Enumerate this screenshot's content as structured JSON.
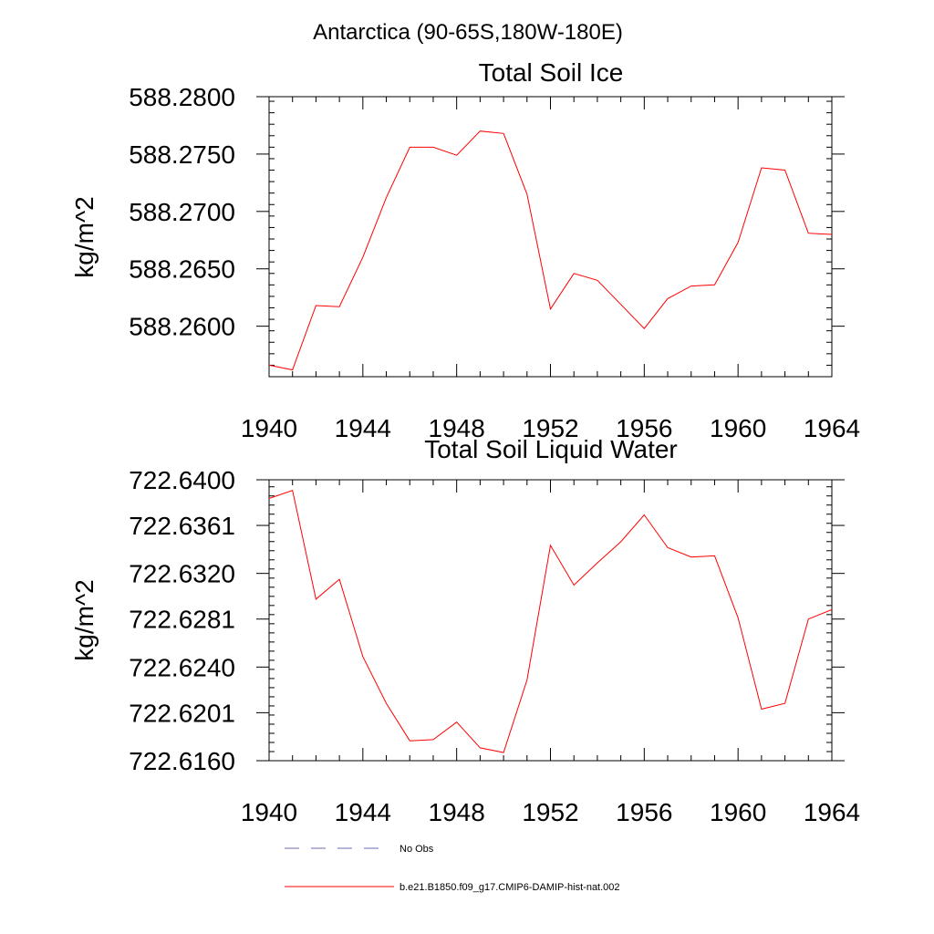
{
  "figure": {
    "suptitle": "Antarctica (90-65S,180W-180E)",
    "colors": {
      "model_line": "#ff0000",
      "obs_line": "#6b6bb5",
      "axes": "#000000"
    }
  },
  "chart_data": [
    {
      "type": "line",
      "title": "Total Soil Ice",
      "xlabel": "",
      "ylabel": "kg/m^2",
      "xlim": [
        1940,
        1964
      ],
      "ylim": [
        588.2556,
        588.28
      ],
      "xticks": [
        1940,
        1944,
        1948,
        1952,
        1956,
        1960,
        1964
      ],
      "xtick_labels": [
        "1940",
        "1944",
        "1948",
        "1952",
        "1956",
        "1960",
        "1964"
      ],
      "yticks": [
        588.28,
        588.275,
        588.27,
        588.265,
        588.26
      ],
      "ytick_labels": [
        "588.2800",
        "588.2750",
        "588.2700",
        "588.2650",
        "588.2600"
      ],
      "grid": false,
      "series": [
        {
          "name": "b.e21.B1850.f09_g17.CMIP6-DAMIP-hist-nat.002",
          "color": "#ff0000",
          "x": [
            1940,
            1941,
            1942,
            1943,
            1944,
            1945,
            1946,
            1947,
            1948,
            1949,
            1950,
            1951,
            1952,
            1953,
            1954,
            1955,
            1956,
            1957,
            1958,
            1959,
            1960,
            1961,
            1962,
            1963,
            1964
          ],
          "values": [
            588.2566,
            588.2562,
            588.2618,
            588.2617,
            588.266,
            588.2712,
            588.2756,
            588.2756,
            588.2749,
            588.277,
            588.2768,
            588.2715,
            588.2615,
            588.2646,
            588.264,
            588.2619,
            588.2598,
            588.2624,
            588.2635,
            588.2636,
            588.2673,
            588.2738,
            588.2736,
            588.2681,
            588.268
          ]
        }
      ]
    },
    {
      "type": "line",
      "title": "Total Soil Liquid Water",
      "xlabel": "",
      "ylabel": "kg/m^2",
      "xlim": [
        1940,
        1964
      ],
      "ylim": [
        722.616,
        722.64
      ],
      "xticks": [
        1940,
        1944,
        1948,
        1952,
        1956,
        1960,
        1964
      ],
      "xtick_labels": [
        "1940",
        "1944",
        "1948",
        "1952",
        "1956",
        "1960",
        "1964"
      ],
      "yticks": [
        722.64,
        722.6361,
        722.632,
        722.6281,
        722.624,
        722.6201,
        722.616
      ],
      "ytick_labels": [
        "722.6400",
        "722.6361",
        "722.6320",
        "722.6281",
        "722.6240",
        "722.6201",
        "722.6160"
      ],
      "grid": false,
      "series": [
        {
          "name": "b.e21.B1850.f09_g17.CMIP6-DAMIP-hist-nat.002",
          "color": "#ff0000",
          "x": [
            1940,
            1941,
            1942,
            1943,
            1944,
            1945,
            1946,
            1947,
            1948,
            1949,
            1950,
            1951,
            1952,
            1953,
            1954,
            1955,
            1956,
            1957,
            1958,
            1959,
            1960,
            1961,
            1962,
            1963,
            1964
          ],
          "values": [
            722.6384,
            722.6391,
            722.6298,
            722.6315,
            722.6249,
            722.6209,
            722.6177,
            722.6178,
            722.6193,
            722.6171,
            722.6167,
            722.6229,
            722.6344,
            722.631,
            722.6329,
            722.6347,
            722.637,
            722.6342,
            722.6334,
            722.6335,
            722.6282,
            722.6204,
            722.6209,
            722.6281,
            722.6289
          ]
        }
      ]
    }
  ],
  "legend": {
    "position": "bottom",
    "items": [
      {
        "label": "No Obs",
        "style": "dashed",
        "color": "#6b6bb5"
      },
      {
        "label": "b.e21.B1850.f09_g17.CMIP6-DAMIP-hist-nat.002",
        "style": "solid",
        "color": "#ff0000"
      }
    ]
  }
}
